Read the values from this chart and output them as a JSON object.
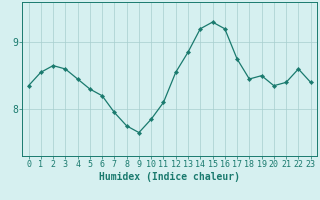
{
  "x": [
    0,
    1,
    2,
    3,
    4,
    5,
    6,
    7,
    8,
    9,
    10,
    11,
    12,
    13,
    14,
    15,
    16,
    17,
    18,
    19,
    20,
    21,
    22,
    23
  ],
  "y": [
    8.35,
    8.55,
    8.65,
    8.6,
    8.45,
    8.3,
    8.2,
    7.95,
    7.75,
    7.65,
    7.85,
    8.1,
    8.55,
    8.85,
    9.2,
    9.3,
    9.2,
    8.75,
    8.45,
    8.5,
    8.35,
    8.4,
    8.6,
    8.4
  ],
  "line_color": "#1a7a6e",
  "marker": "D",
  "marker_size": 2.2,
  "bg_color": "#d6f0f0",
  "grid_color": "#a8cece",
  "xlabel": "Humidex (Indice chaleur)",
  "xlabel_fontsize": 7,
  "tick_fontsize": 6,
  "yticks": [
    8,
    9
  ],
  "xlim": [
    -0.5,
    23.5
  ],
  "ylim": [
    7.3,
    9.6
  ]
}
